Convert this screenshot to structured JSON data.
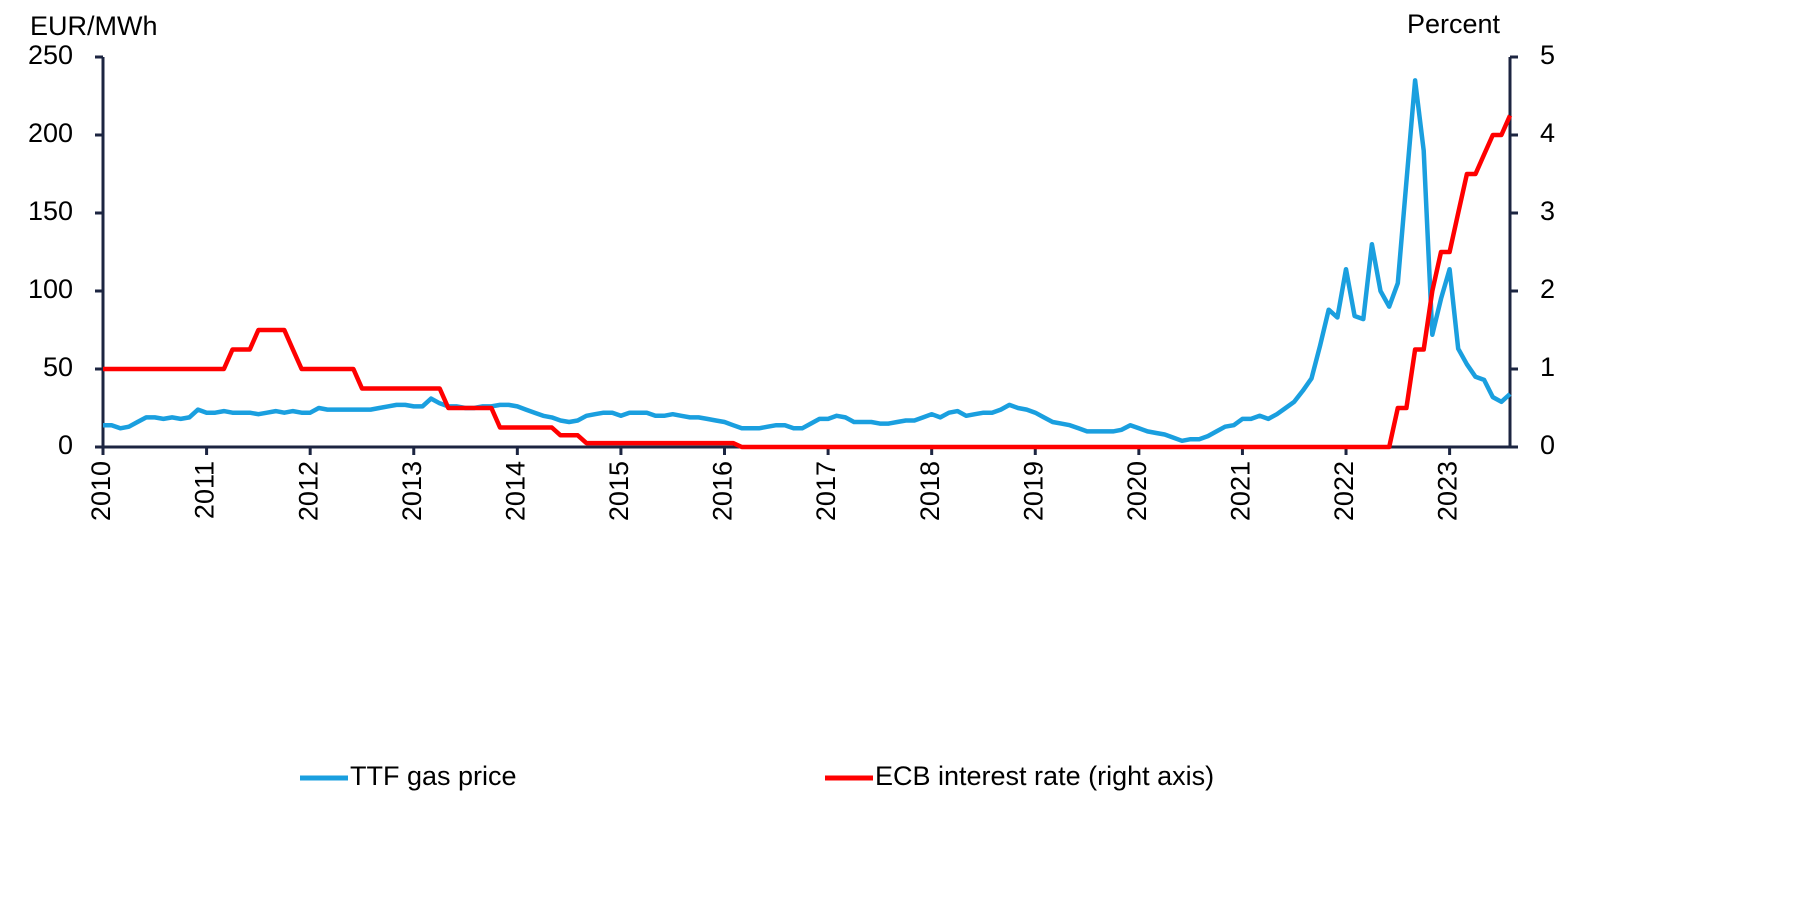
{
  "chart_data": {
    "type": "line",
    "ylabel": "EUR/MWh",
    "y2label": "Percent",
    "x": [
      2010,
      2010.083,
      2010.167,
      2010.25,
      2010.333,
      2010.417,
      2010.5,
      2010.583,
      2010.667,
      2010.75,
      2010.833,
      2010.917,
      2011,
      2011.083,
      2011.167,
      2011.25,
      2011.333,
      2011.417,
      2011.5,
      2011.583,
      2011.667,
      2011.75,
      2011.833,
      2011.917,
      2012,
      2012.083,
      2012.167,
      2012.25,
      2012.333,
      2012.417,
      2012.5,
      2012.583,
      2012.667,
      2012.75,
      2012.833,
      2012.917,
      2013,
      2013.083,
      2013.167,
      2013.25,
      2013.333,
      2013.417,
      2013.5,
      2013.583,
      2013.667,
      2013.75,
      2013.833,
      2013.917,
      2014,
      2014.083,
      2014.167,
      2014.25,
      2014.333,
      2014.417,
      2014.5,
      2014.583,
      2014.667,
      2014.75,
      2014.833,
      2014.917,
      2015,
      2015.083,
      2015.167,
      2015.25,
      2015.333,
      2015.417,
      2015.5,
      2015.583,
      2015.667,
      2015.75,
      2015.833,
      2015.917,
      2016,
      2016.083,
      2016.167,
      2016.25,
      2016.333,
      2016.417,
      2016.5,
      2016.583,
      2016.667,
      2016.75,
      2016.833,
      2016.917,
      2017,
      2017.083,
      2017.167,
      2017.25,
      2017.333,
      2017.417,
      2017.5,
      2017.583,
      2017.667,
      2017.75,
      2017.833,
      2017.917,
      2018,
      2018.083,
      2018.167,
      2018.25,
      2018.333,
      2018.417,
      2018.5,
      2018.583,
      2018.667,
      2018.75,
      2018.833,
      2018.917,
      2019,
      2019.083,
      2019.167,
      2019.25,
      2019.333,
      2019.417,
      2019.5,
      2019.583,
      2019.667,
      2019.75,
      2019.833,
      2019.917,
      2020,
      2020.083,
      2020.167,
      2020.25,
      2020.333,
      2020.417,
      2020.5,
      2020.583,
      2020.667,
      2020.75,
      2020.833,
      2020.917,
      2021,
      2021.083,
      2021.167,
      2021.25,
      2021.333,
      2021.417,
      2021.5,
      2021.583,
      2021.667,
      2021.75,
      2021.833,
      2021.917,
      2022,
      2022.083,
      2022.167,
      2022.25,
      2022.333,
      2022.417,
      2022.5,
      2022.583,
      2022.667,
      2022.75,
      2022.833,
      2022.917,
      2023,
      2023.083,
      2023.167,
      2023.25,
      2023.333,
      2023.417,
      2023.5,
      2023.583
    ],
    "series": [
      {
        "name": "TTF gas price",
        "color": "#1a9fdf",
        "values": [
          14,
          14,
          12,
          13,
          16,
          19,
          19,
          18,
          19,
          18,
          19,
          24,
          22,
          22,
          23,
          22,
          22,
          22,
          21,
          22,
          23,
          22,
          23,
          22,
          22,
          25,
          24,
          24,
          24,
          24,
          24,
          24,
          25,
          26,
          27,
          27,
          26,
          26,
          31,
          28,
          26,
          26,
          25,
          25,
          26,
          26,
          27,
          27,
          26,
          24,
          22,
          20,
          19,
          17,
          16,
          17,
          20,
          21,
          22,
          22,
          20,
          22,
          22,
          22,
          20,
          20,
          21,
          20,
          19,
          19,
          18,
          17,
          16,
          14,
          12,
          12,
          12,
          13,
          14,
          14,
          12,
          12,
          15,
          18,
          18,
          20,
          19,
          16,
          16,
          16,
          15,
          15,
          16,
          17,
          17,
          19,
          21,
          19,
          22,
          23,
          20,
          21,
          22,
          22,
          24,
          27,
          25,
          24,
          22,
          19,
          16,
          15,
          14,
          12,
          10,
          10,
          10,
          10,
          11,
          14,
          12,
          10,
          9,
          8,
          6,
          4,
          5,
          5,
          7,
          10,
          13,
          14,
          18,
          18,
          20,
          18,
          21,
          25,
          29,
          36,
          44,
          65,
          88,
          83,
          114,
          84,
          82,
          130,
          100,
          90,
          105,
          170,
          235,
          190,
          72,
          95,
          114,
          63,
          53,
          45,
          43,
          32,
          29,
          34
        ]
      },
      {
        "name": "ECB interest rate (right axis)",
        "color": "#ff0000",
        "axis": "y2",
        "values": [
          1,
          1,
          1,
          1,
          1,
          1,
          1,
          1,
          1,
          1,
          1,
          1,
          1,
          1,
          1,
          1.25,
          1.25,
          1.25,
          1.5,
          1.5,
          1.5,
          1.5,
          1.25,
          1,
          1,
          1,
          1,
          1,
          1,
          1,
          0.75,
          0.75,
          0.75,
          0.75,
          0.75,
          0.75,
          0.75,
          0.75,
          0.75,
          0.75,
          0.5,
          0.5,
          0.5,
          0.5,
          0.5,
          0.5,
          0.25,
          0.25,
          0.25,
          0.25,
          0.25,
          0.25,
          0.25,
          0.15,
          0.15,
          0.15,
          0.05,
          0.05,
          0.05,
          0.05,
          0.05,
          0.05,
          0.05,
          0.05,
          0.05,
          0.05,
          0.05,
          0.05,
          0.05,
          0.05,
          0.05,
          0.05,
          0.05,
          0.05,
          0,
          0,
          0,
          0,
          0,
          0,
          0,
          0,
          0,
          0,
          0,
          0,
          0,
          0,
          0,
          0,
          0,
          0,
          0,
          0,
          0,
          0,
          0,
          0,
          0,
          0,
          0,
          0,
          0,
          0,
          0,
          0,
          0,
          0,
          0,
          0,
          0,
          0,
          0,
          0,
          0,
          0,
          0,
          0,
          0,
          0,
          0,
          0,
          0,
          0,
          0,
          0,
          0,
          0,
          0,
          0,
          0,
          0,
          0,
          0,
          0,
          0,
          0,
          0,
          0,
          0,
          0,
          0,
          0,
          0,
          0,
          0,
          0,
          0,
          0,
          0,
          0.5,
          0.5,
          1.25,
          1.25,
          2,
          2.5,
          2.5,
          3,
          3.5,
          3.5,
          3.75,
          4,
          4,
          4.25
        ]
      }
    ],
    "xlim": [
      2010,
      2023.583
    ],
    "xticks": [
      2010,
      2011,
      2012,
      2013,
      2014,
      2015,
      2016,
      2017,
      2018,
      2019,
      2020,
      2021,
      2022,
      2023
    ],
    "ylim": [
      0,
      250
    ],
    "yticks": [
      0,
      50,
      100,
      150,
      200,
      250
    ],
    "y2lim": [
      0,
      5
    ],
    "y2ticks": [
      0,
      1,
      2,
      3,
      4,
      5
    ],
    "legend": "bottom"
  }
}
